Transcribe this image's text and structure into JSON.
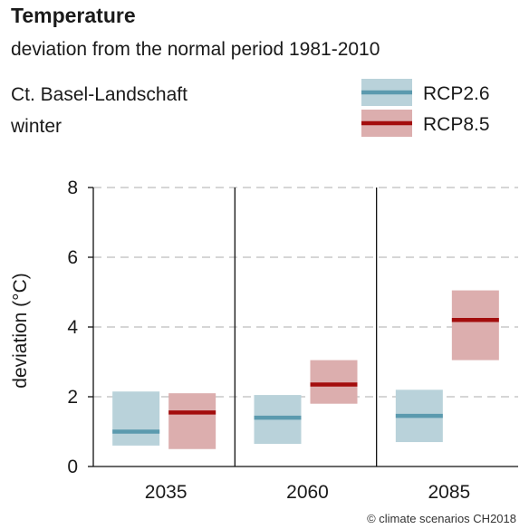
{
  "header": {
    "title": "Temperature",
    "subtitle": "deviation from the normal period 1981-2010",
    "region": "Ct. Basel-Landschaft",
    "season": "winter"
  },
  "credit": "© climate scenarios CH2018",
  "colors": {
    "rcp26_box": "#b9d2da",
    "rcp26_line": "#5b9aae",
    "rcp85_box": "#dcaeae",
    "rcp85_line": "#a30d0d",
    "grid": "#bdbdbd",
    "axis": "#111111"
  },
  "chart_data": {
    "type": "bar",
    "title": "Temperature",
    "subtitle": "deviation from the normal period 1981-2010",
    "ylabel": "deviation (°C)",
    "xlabel": "",
    "ylim": [
      0,
      8
    ],
    "yticks": [
      0,
      2,
      4,
      6,
      8
    ],
    "grid": true,
    "legend_position": "top-right",
    "categories": [
      "2035",
      "2060",
      "2085"
    ],
    "series": [
      {
        "name": "RCP2.6",
        "low": [
          0.6,
          0.65,
          0.7
        ],
        "median": [
          1.0,
          1.4,
          1.45
        ],
        "high": [
          2.15,
          2.05,
          2.2
        ]
      },
      {
        "name": "RCP8.5",
        "low": [
          0.5,
          1.8,
          3.05
        ],
        "median": [
          1.55,
          2.35,
          4.2
        ],
        "high": [
          2.1,
          3.05,
          5.05
        ]
      }
    ]
  }
}
